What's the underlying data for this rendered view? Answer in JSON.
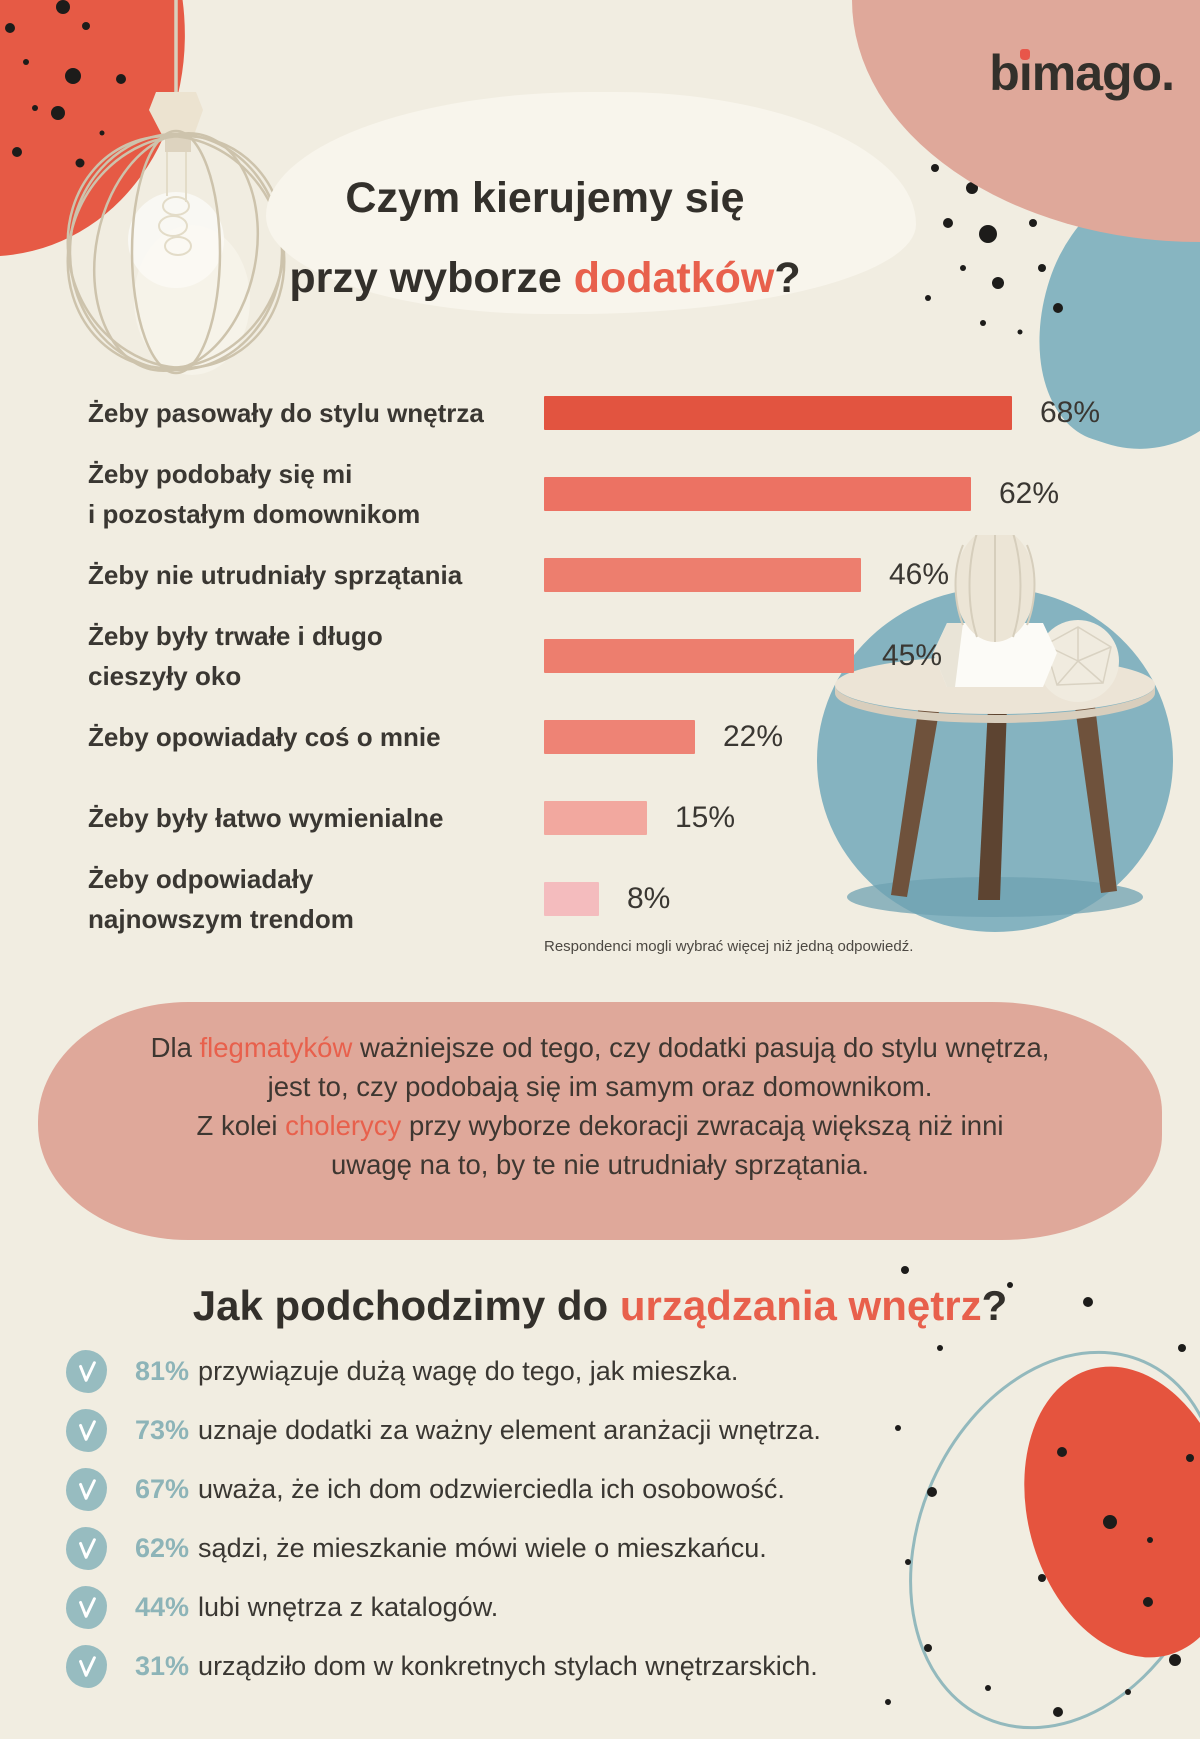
{
  "logo": {
    "pre": "b",
    "i": "i",
    "rest": "mago."
  },
  "title": {
    "line1": "Czym kierujemy się",
    "line2_prefix": "przy wyborze ",
    "line2_accent": "dodatków",
    "line2_suffix": "?"
  },
  "chart_data": {
    "type": "bar",
    "orientation": "horizontal",
    "categories": [
      "Żeby pasowały do stylu wnętrza",
      "Żeby podobały się mi\ni pozostałym domownikom",
      "Żeby nie utrudniały sprzątania",
      "Żeby były trwałe i długo\ncieszyły oko",
      "Żeby opowiadały coś o mnie",
      "Żeby były łatwo wymienialne",
      "Żeby odpowiadały\nnajnowszym trendom"
    ],
    "values": [
      68,
      62,
      46,
      45,
      22,
      15,
      8
    ],
    "value_labels": [
      "68%",
      "62%",
      "46%",
      "45%",
      "22%",
      "15%",
      "8%"
    ],
    "bar_colors": [
      "#e25440",
      "#ec7263",
      "#ed7e6e",
      "#ed7e6e",
      "#ee8375",
      "#f2a89f",
      "#f4bcbe"
    ],
    "xlim": [
      0,
      68
    ],
    "grid": false,
    "legend": false,
    "note": "Respondenci mogli wybrać więcej niż jedną odpowiedź."
  },
  "insight": {
    "segments": [
      {
        "text": "Dla ",
        "accent": false
      },
      {
        "text": "flegmatyków",
        "accent": true
      },
      {
        "text": " ważniejsze od tego, czy dodatki pasują do stylu wnętrza,\njest to, czy podobają się im samym oraz domownikom.\nZ kolei ",
        "accent": false
      },
      {
        "text": "cholerycy",
        "accent": true
      },
      {
        "text": " przy wyborze dekoracji zwracają większą niż inni\nuwagę na to, by te nie utrudniały sprzątania.",
        "accent": false
      }
    ]
  },
  "section2": {
    "title_prefix": "Jak podchodzimy do ",
    "title_accent": "urządzania wnętrz",
    "title_suffix": "?",
    "items": [
      {
        "pct": "81%",
        "text": "przywiązuje dużą wagę do tego, jak mieszka."
      },
      {
        "pct": "73%",
        "text": "uznaje dodatki za ważny element aranżacji wnętrza."
      },
      {
        "pct": "67%",
        "text": "uważa, że ich dom odzwierciedla ich osobowość."
      },
      {
        "pct": "62%",
        "text": "sądzi, że mieszkanie mówi wiele o mieszkańcu."
      },
      {
        "pct": "44%",
        "text": "lubi wnętrza z katalogów."
      },
      {
        "pct": "31%",
        "text": "urządziło dom w konkretnych stylach wnętrzarskich."
      }
    ]
  },
  "icons": {
    "check_circle": "check-icon",
    "logo_dot": "red-dot",
    "decorations": [
      "pendant-lamp",
      "side-table-with-cactus",
      "paint-splatter-dots",
      "organic-blobs"
    ]
  },
  "colors": {
    "page_bg": "#f1ede1",
    "accent_text": "#e8604c",
    "dark_text": "#373430",
    "salmon_blob": "#dfa89a",
    "red_blob": "#e65a45",
    "teal_blob": "#87b5c1",
    "check_circle": "#97bcc0",
    "pct_teal": "#8db4b8"
  }
}
